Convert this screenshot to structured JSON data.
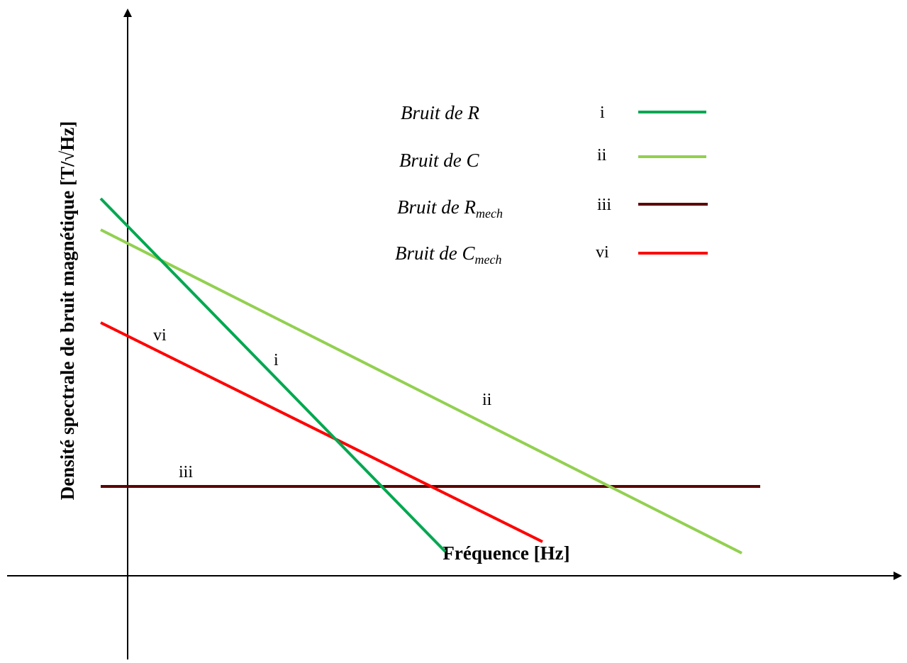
{
  "axes": {
    "x_label": "Fréquence [Hz]",
    "y_label": "Densité spectrale de bruit magnétique [T/√Hz]"
  },
  "legend": [
    {
      "prefix": "Bruit de ",
      "symbol": "R",
      "subscript": "",
      "id": "i",
      "color": "#00a850"
    },
    {
      "prefix": "Bruit de ",
      "symbol": "C",
      "subscript": "",
      "id": "ii",
      "color": "#92d050"
    },
    {
      "prefix": "Bruit de ",
      "symbol": "R",
      "subscript": "mech",
      "id": "iii",
      "color": "#5c0000"
    },
    {
      "prefix": "Bruit de ",
      "symbol": "C",
      "subscript": "mech",
      "id": "vi",
      "color": "#ff0000"
    }
  ],
  "line_labels": {
    "i": "i",
    "ii": "ii",
    "iii": "iii",
    "vi": "vi"
  },
  "colors": {
    "axis": "#000000",
    "R": "#00a850",
    "C": "#92d050",
    "R_mech": "#5c0000",
    "C_mech": "#ff0000"
  }
}
